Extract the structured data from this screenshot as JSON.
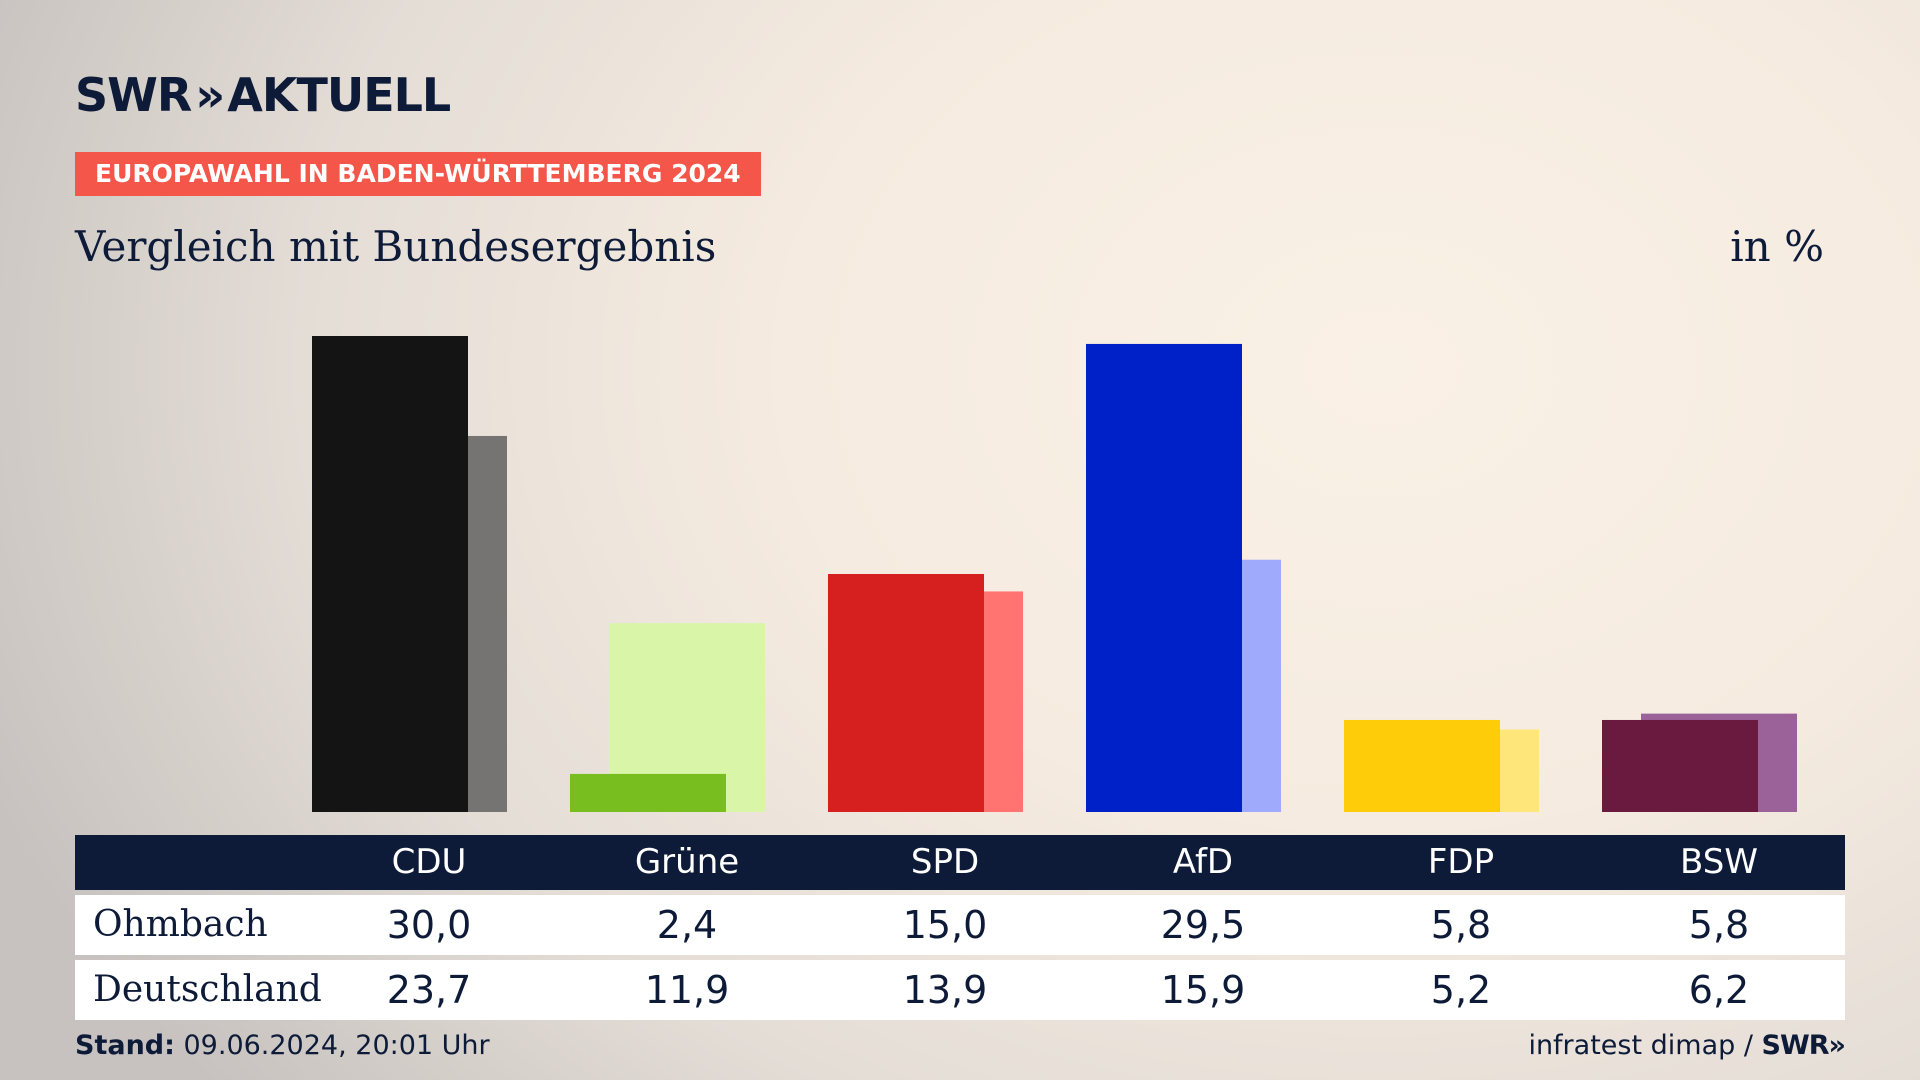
{
  "brand": {
    "logo_left": "SWR",
    "logo_chevrons": "››",
    "logo_right": "AKTUELL"
  },
  "kicker": "EUROPAWAHL IN BADEN-WÜRTTEMBERG 2024",
  "subtitle": "Vergleich mit Bundesergebnis",
  "unit": "in %",
  "table": {
    "rows": [
      {
        "label": "Ohmbach",
        "values": [
          "30,0",
          "2,4",
          "15,0",
          "29,5",
          "5,8",
          "5,8"
        ]
      },
      {
        "label": "Deutschland",
        "values": [
          "23,7",
          "11,9",
          "13,9",
          "15,9",
          "5,2",
          "6,2"
        ]
      }
    ]
  },
  "footer": {
    "stand_label": "Stand:",
    "stand_value": " 09.06.2024, 20:01 Uhr",
    "source": "infratest dimap / ",
    "source_brand": "SWR»"
  },
  "chart_data": {
    "type": "bar",
    "categories": [
      "CDU",
      "Grüne",
      "SPD",
      "AfD",
      "FDP",
      "BSW"
    ],
    "series": [
      {
        "name": "Ohmbach",
        "values": [
          30.0,
          2.4,
          15.0,
          29.5,
          5.8,
          5.8
        ]
      },
      {
        "name": "Deutschland",
        "values": [
          23.7,
          11.9,
          13.9,
          15.9,
          5.2,
          6.2
        ]
      }
    ],
    "colors_primary": [
      "#141414",
      "#78be1e",
      "#d62020",
      "#0021c8",
      "#ffcc0a",
      "#6b1a3f"
    ],
    "colors_secondary": [
      "#767472",
      "#d8f5a8",
      "#ff7470",
      "#9faafc",
      "#ffe67a",
      "#9a6299"
    ],
    "ylim": [
      0,
      30
    ],
    "grid": false,
    "legend": "table-below"
  }
}
